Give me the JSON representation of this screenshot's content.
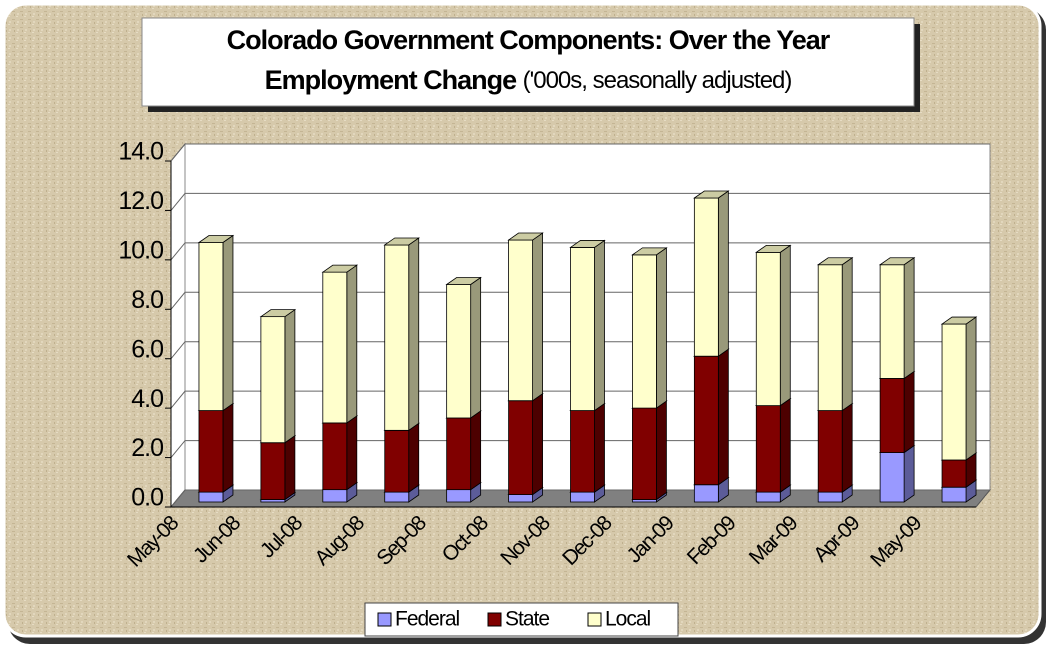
{
  "chart_data": {
    "type": "bar3d_stacked",
    "title_lines": [
      "Colorado Government Components: Over the Year",
      "Employment Change"
    ],
    "subtitle": "('000s, seasonally adjusted)",
    "categories": [
      "May-08",
      "Jun-08",
      "Jul-08",
      "Aug-08",
      "Sep-08",
      "Oct-08",
      "Nov-08",
      "Dec-08",
      "Jan-09",
      "Feb-09",
      "Mar-09",
      "Apr-09",
      "May-09"
    ],
    "series": [
      {
        "name": "Federal",
        "color": "#9999ff",
        "values": [
          0.4,
          0.1,
          0.5,
          0.4,
          0.5,
          0.3,
          0.4,
          0.1,
          0.7,
          0.4,
          0.4,
          2.0,
          0.6
        ]
      },
      {
        "name": "State",
        "color": "#800000",
        "values": [
          3.3,
          2.3,
          2.7,
          2.5,
          2.9,
          3.8,
          3.3,
          3.7,
          5.2,
          3.5,
          3.3,
          3.0,
          1.1
        ]
      },
      {
        "name": "Local",
        "color": "#ffffcc",
        "values": [
          6.8,
          5.1,
          6.1,
          7.5,
          5.4,
          6.5,
          6.6,
          6.2,
          6.4,
          6.2,
          5.9,
          4.6,
          5.5
        ]
      }
    ],
    "ylim": [
      0,
      14
    ],
    "yticks": [
      {
        "value": 0,
        "label": "0.0"
      },
      {
        "value": 2,
        "label": "2.0"
      },
      {
        "value": 4,
        "label": "4.0"
      },
      {
        "value": 6,
        "label": "6.0"
      },
      {
        "value": 8,
        "label": "8.0"
      },
      {
        "value": 10,
        "label": "10.0"
      },
      {
        "value": 12,
        "label": "12.0"
      },
      {
        "value": 14,
        "label": "14.0"
      }
    ],
    "grid": true
  }
}
